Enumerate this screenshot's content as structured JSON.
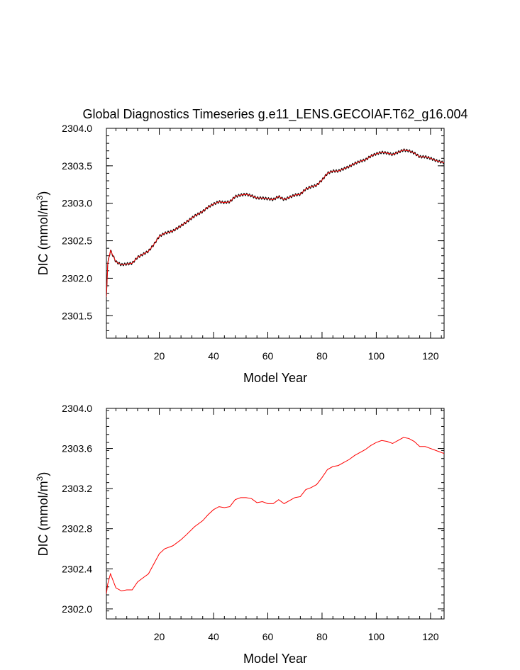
{
  "title": "Global Diagnostics Timeseries g.e11_LENS.GECOIAF.T62_g16.004",
  "chart_data": [
    {
      "type": "line",
      "xlabel": "Model Year",
      "ylabel_main": "DIC (mmol/m",
      "ylabel_sup": "3",
      "ylabel_end": ")",
      "xlim": [
        0.5,
        125
      ],
      "ylim": [
        2301.2,
        2304.0
      ],
      "xticks": [
        20,
        40,
        60,
        80,
        100,
        120
      ],
      "xtick_labels": [
        "20",
        "40",
        "60",
        "80",
        "100",
        "120"
      ],
      "yticks": [
        2301.5,
        2302.0,
        2302.5,
        2303.0,
        2303.5,
        2304.0
      ],
      "ytick_labels": [
        "2301.5",
        "2302.0",
        "2302.5",
        "2303.0",
        "2303.5",
        "2304.0"
      ],
      "series": [
        {
          "style": "monthly",
          "color": "#000000",
          "x": [
            0.5,
            1,
            2,
            4,
            6,
            8,
            10,
            12,
            14,
            16,
            18,
            20,
            22,
            25,
            28,
            30,
            33,
            36,
            38,
            40,
            42,
            44,
            46,
            48,
            50,
            52,
            54,
            56,
            58,
            60,
            62,
            64,
            66,
            68,
            70,
            72,
            74,
            76,
            78,
            80,
            82,
            84,
            86,
            88,
            90,
            92,
            94,
            96,
            98,
            100,
            102,
            104,
            106,
            108,
            110,
            112,
            114,
            116,
            118,
            120,
            122,
            124,
            125
          ],
          "y": [
            2301.75,
            2302.2,
            2302.37,
            2302.22,
            2302.18,
            2302.19,
            2302.2,
            2302.28,
            2302.32,
            2302.36,
            2302.45,
            2302.56,
            2302.6,
            2302.63,
            2302.7,
            2302.75,
            2302.83,
            2302.89,
            2302.95,
            2302.99,
            2303.02,
            2303.01,
            2303.02,
            2303.09,
            2303.11,
            2303.12,
            2303.1,
            2303.07,
            2303.07,
            2303.06,
            2303.05,
            2303.09,
            2303.05,
            2303.08,
            2303.11,
            2303.12,
            2303.19,
            2303.22,
            2303.24,
            2303.31,
            2303.4,
            2303.43,
            2303.43,
            2303.46,
            2303.49,
            2303.53,
            2303.56,
            2303.58,
            2303.63,
            2303.66,
            2303.68,
            2303.67,
            2303.65,
            2303.68,
            2303.71,
            2303.7,
            2303.67,
            2303.62,
            2303.62,
            2303.6,
            2303.57,
            2303.55,
            2303.54
          ]
        },
        {
          "style": "annual",
          "color": "#ff0000",
          "x": [
            0.5,
            1,
            2,
            4,
            6,
            8,
            10,
            12,
            14,
            16,
            18,
            20,
            22,
            25,
            28,
            30,
            33,
            36,
            38,
            40,
            42,
            44,
            46,
            48,
            50,
            52,
            54,
            56,
            58,
            60,
            62,
            64,
            66,
            68,
            70,
            72,
            74,
            76,
            78,
            80,
            82,
            84,
            86,
            88,
            90,
            92,
            94,
            96,
            98,
            100,
            102,
            104,
            106,
            108,
            110,
            112,
            114,
            116,
            118,
            120,
            122,
            124,
            125
          ],
          "y": [
            2301.75,
            2302.2,
            2302.37,
            2302.22,
            2302.18,
            2302.19,
            2302.2,
            2302.28,
            2302.32,
            2302.36,
            2302.45,
            2302.56,
            2302.6,
            2302.63,
            2302.7,
            2302.75,
            2302.83,
            2302.89,
            2302.95,
            2302.99,
            2303.02,
            2303.01,
            2303.02,
            2303.09,
            2303.11,
            2303.12,
            2303.1,
            2303.07,
            2303.07,
            2303.06,
            2303.05,
            2303.09,
            2303.05,
            2303.08,
            2303.11,
            2303.12,
            2303.19,
            2303.22,
            2303.24,
            2303.31,
            2303.4,
            2303.43,
            2303.43,
            2303.46,
            2303.49,
            2303.53,
            2303.56,
            2303.58,
            2303.63,
            2303.66,
            2303.68,
            2303.67,
            2303.65,
            2303.68,
            2303.71,
            2303.7,
            2303.67,
            2303.62,
            2303.62,
            2303.6,
            2303.57,
            2303.55,
            2303.54
          ]
        }
      ]
    },
    {
      "type": "line",
      "xlabel": "Model Year",
      "ylabel_main": "DIC (mmol/m",
      "ylabel_sup": "3",
      "ylabel_end": ")",
      "xlim": [
        0.5,
        125
      ],
      "ylim": [
        2301.9,
        2304.0
      ],
      "xticks": [
        20,
        40,
        60,
        80,
        100,
        120
      ],
      "xtick_labels": [
        "20",
        "40",
        "60",
        "80",
        "100",
        "120"
      ],
      "yticks": [
        2302.0,
        2302.4,
        2302.8,
        2303.2,
        2303.6,
        2304.0
      ],
      "ytick_labels": [
        "2302.0",
        "2302.4",
        "2302.8",
        "2303.2",
        "2303.6",
        "2304.0"
      ],
      "series": [
        {
          "style": "annual",
          "color": "#ff0000",
          "x": [
            0.5,
            1,
            2,
            4,
            6,
            8,
            10,
            12,
            14,
            16,
            18,
            20,
            22,
            25,
            28,
            30,
            33,
            36,
            38,
            40,
            42,
            44,
            46,
            48,
            50,
            52,
            54,
            56,
            58,
            60,
            62,
            64,
            66,
            68,
            70,
            72,
            74,
            76,
            78,
            80,
            82,
            84,
            86,
            88,
            90,
            92,
            94,
            96,
            98,
            100,
            102,
            104,
            106,
            108,
            110,
            112,
            114,
            116,
            118,
            120,
            122,
            124,
            125
          ],
          "y": [
            2302.15,
            2302.25,
            2302.35,
            2302.21,
            2302.18,
            2302.19,
            2302.19,
            2302.27,
            2302.31,
            2302.35,
            2302.45,
            2302.55,
            2302.6,
            2302.63,
            2302.69,
            2302.74,
            2302.82,
            2302.88,
            2302.94,
            2302.99,
            2303.02,
            2303.01,
            2303.02,
            2303.09,
            2303.11,
            2303.11,
            2303.1,
            2303.06,
            2303.07,
            2303.05,
            2303.05,
            2303.09,
            2303.05,
            2303.08,
            2303.11,
            2303.12,
            2303.19,
            2303.21,
            2303.24,
            2303.31,
            2303.39,
            2303.42,
            2303.43,
            2303.46,
            2303.49,
            2303.53,
            2303.56,
            2303.59,
            2303.63,
            2303.66,
            2303.68,
            2303.67,
            2303.65,
            2303.68,
            2303.71,
            2303.7,
            2303.67,
            2303.62,
            2303.62,
            2303.6,
            2303.58,
            2303.56,
            2303.55
          ]
        }
      ]
    }
  ]
}
